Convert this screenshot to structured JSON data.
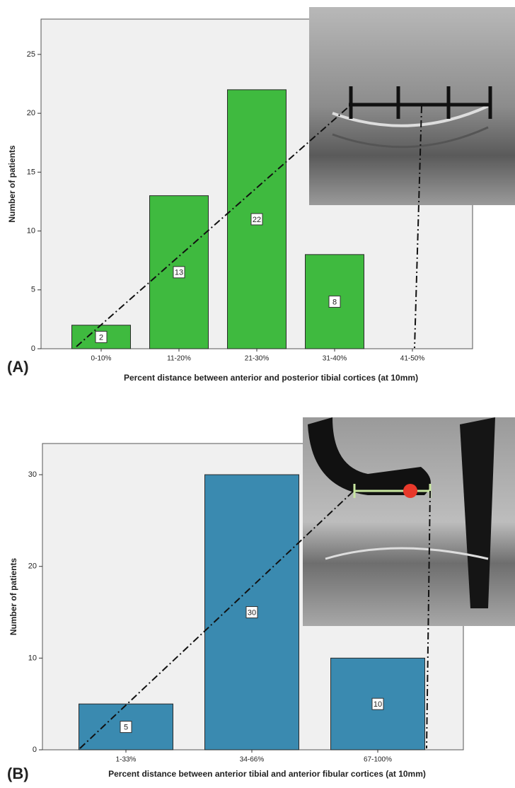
{
  "chart_data": [
    {
      "type": "bar",
      "panel_label": "(A)",
      "ylabel": "Number of patients",
      "xlabel": "Percent distance between anterior and posterior tibial cortices (at 10mm)",
      "categories": [
        "0-10%",
        "11-20%",
        "21-30%",
        "31-40%",
        "41-50%"
      ],
      "values": [
        2,
        13,
        22,
        8,
        0
      ],
      "color": "#3fba3f",
      "ylim": [
        0,
        28
      ],
      "yticks": [
        0,
        5,
        10,
        15,
        20,
        25
      ]
    },
    {
      "type": "bar",
      "panel_label": "(B)",
      "ylabel": "Number of patients",
      "xlabel": "Percent distance between anterior tibial and anterior fibular cortices (at 10mm)",
      "categories": [
        "1-33%",
        "34-66%",
        "67-100%"
      ],
      "values": [
        5,
        30,
        10
      ],
      "color": "#3a8ab0",
      "ylim": [
        0,
        33.4
      ],
      "yticks": [
        0,
        10,
        20,
        30
      ]
    }
  ]
}
